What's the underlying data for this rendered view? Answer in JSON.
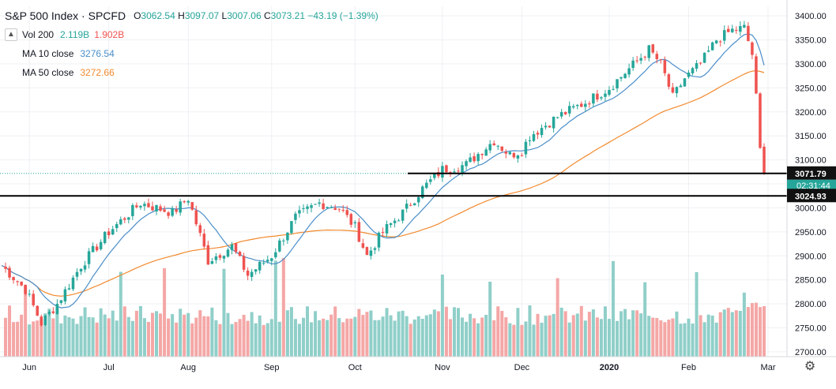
{
  "legend": {
    "symbol": "S&P 500 Index",
    "ticker": "SPCFD",
    "open_label": "O",
    "open": "3062.54",
    "high_label": "H",
    "high": "3097.07",
    "low_label": "L",
    "low": "3007.06",
    "close_label": "C",
    "close": "3073.21",
    "change": "−43.19 (−1.39%)",
    "vol_label": "Vol 200",
    "vol_value": "2.119B",
    "vol_ma": "1.902B",
    "ma10_label": "MA 10 close",
    "ma10_value": "3276.54",
    "ma50_label": "MA 50 close",
    "ma50_value": "3272.66",
    "collapse_icon": "chevron-up-icon"
  },
  "colors": {
    "up": "#26a69a",
    "down": "#ef5350",
    "vol_up": "#90cfc9",
    "vol_down": "#f4a7a6",
    "ma10": "#4a8ec9",
    "ma50": "#f28a2e",
    "grid": "#eef0f3",
    "hline": "#000000",
    "price_tag": "#26a69a"
  },
  "chart_data": {
    "type": "candlestick",
    "title": "S&P 500 Index · SPCFD",
    "ylim": [
      2690,
      3420
    ],
    "y_ticks": [
      2700,
      2750,
      2800,
      2850,
      2900,
      2950,
      3000,
      3050,
      3100,
      3150,
      3200,
      3250,
      3300,
      3350,
      3400
    ],
    "x_ticks": [
      "Jun",
      "Jul",
      "Aug",
      "Sep",
      "Oct",
      "Nov",
      "Dec",
      "2020",
      "Feb",
      "Mar"
    ],
    "x_tick_bar_index": [
      7,
      27,
      47,
      68,
      89,
      111,
      131,
      153,
      173,
      193
    ],
    "bar_count": 192,
    "horizontal_levels": [
      {
        "value": 3071.79,
        "label": "3071.79"
      },
      {
        "value": 3024.93,
        "label": "3024.93"
      }
    ],
    "last_price_label": "3071.79",
    "countdown_label": "02:31:44",
    "anchors": [
      [
        0,
        2880
      ],
      [
        6,
        2830
      ],
      [
        10,
        2760
      ],
      [
        14,
        2800
      ],
      [
        20,
        2880
      ],
      [
        27,
        2950
      ],
      [
        35,
        3010
      ],
      [
        43,
        2990
      ],
      [
        47,
        3020
      ],
      [
        52,
        2890
      ],
      [
        58,
        2920
      ],
      [
        62,
        2860
      ],
      [
        68,
        2900
      ],
      [
        74,
        2980
      ],
      [
        80,
        3010
      ],
      [
        85,
        3000
      ],
      [
        89,
        2960
      ],
      [
        92,
        2900
      ],
      [
        96,
        2950
      ],
      [
        101,
        2990
      ],
      [
        106,
        3040
      ],
      [
        111,
        3080
      ],
      [
        117,
        3090
      ],
      [
        121,
        3120
      ],
      [
        124,
        3140
      ],
      [
        128,
        3110
      ],
      [
        131,
        3120
      ],
      [
        133,
        3150
      ],
      [
        140,
        3190
      ],
      [
        147,
        3220
      ],
      [
        153,
        3250
      ],
      [
        158,
        3290
      ],
      [
        163,
        3330
      ],
      [
        166,
        3300
      ],
      [
        169,
        3230
      ],
      [
        172,
        3270
      ],
      [
        176,
        3300
      ],
      [
        180,
        3350
      ],
      [
        184,
        3370
      ],
      [
        187,
        3375
      ],
      [
        189,
        3320
      ],
      [
        190,
        3230
      ],
      [
        191,
        3120
      ],
      [
        192,
        3070
      ]
    ],
    "volume_scale_note": "volume shown as bars in bottom pane"
  }
}
